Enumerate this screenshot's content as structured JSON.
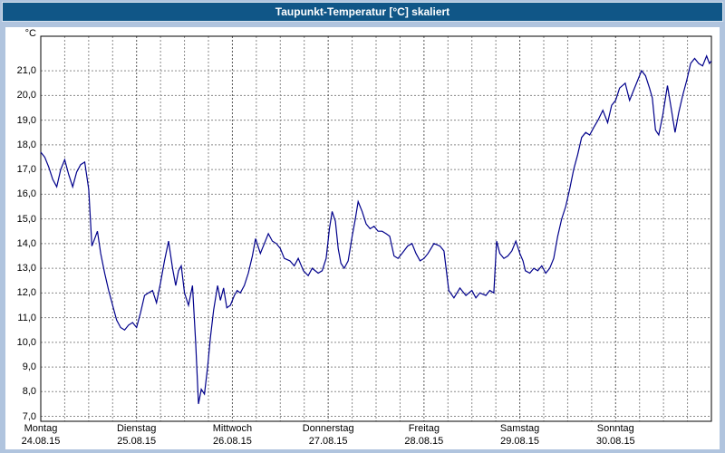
{
  "window": {
    "title": "Taupunkt-Temperatur [°C] skaliert"
  },
  "colors": {
    "frame": "#b0c4de",
    "titlebar": "#105687",
    "plot_background": "#ffffff",
    "grid": "#8a8a8a",
    "day_grid": "#555555",
    "axis_border": "#000000",
    "line": "#00008b"
  },
  "chart_data": {
    "type": "line",
    "title": "Taupunkt-Temperatur [°C] skaliert",
    "ylabel": "°C",
    "ylim": [
      6.8,
      22.4
    ],
    "grid": true,
    "x_axis": {
      "unit": "hours",
      "range": [
        0,
        168
      ],
      "minor_grid_hours": 6,
      "days": [
        {
          "name": "Montag",
          "date": "24.08.15"
        },
        {
          "name": "Dienstag",
          "date": "25.08.15"
        },
        {
          "name": "Mittwoch",
          "date": "26.08.15"
        },
        {
          "name": "Donnerstag",
          "date": "27.08.15"
        },
        {
          "name": "Freitag",
          "date": "28.08.15"
        },
        {
          "name": "Samstag",
          "date": "29.08.15"
        },
        {
          "name": "Sonntag",
          "date": "30.08.15"
        }
      ]
    },
    "y_ticks": [
      {
        "value": 21,
        "label": "21,0"
      },
      {
        "value": 20,
        "label": "20,0"
      },
      {
        "value": 19,
        "label": "19,0"
      },
      {
        "value": 18,
        "label": "18,0"
      },
      {
        "value": 17,
        "label": "17,0"
      },
      {
        "value": 16,
        "label": "16,0"
      },
      {
        "value": 15,
        "label": "15,0"
      },
      {
        "value": 14,
        "label": "14,0"
      },
      {
        "value": 13,
        "label": "13,0"
      },
      {
        "value": 12,
        "label": "12,0"
      },
      {
        "value": 11,
        "label": "11,0"
      },
      {
        "value": 10,
        "label": "10,0"
      },
      {
        "value": 9,
        "label": "9,0"
      },
      {
        "value": 8,
        "label": "8,0"
      },
      {
        "value": 7,
        "label": "7,0"
      }
    ],
    "series": [
      {
        "name": "Taupunkt-Temperatur",
        "color": "#00008b",
        "points": [
          [
            0,
            17.7
          ],
          [
            1,
            17.5
          ],
          [
            2,
            17.1
          ],
          [
            3,
            16.6
          ],
          [
            4,
            16.3
          ],
          [
            5,
            17.0
          ],
          [
            6,
            17.4
          ],
          [
            7,
            16.8
          ],
          [
            8,
            16.3
          ],
          [
            9,
            16.9
          ],
          [
            10,
            17.2
          ],
          [
            11,
            17.3
          ],
          [
            12,
            16.2
          ],
          [
            12.8,
            13.9
          ],
          [
            13.5,
            14.2
          ],
          [
            14.2,
            14.5
          ],
          [
            15,
            13.6
          ],
          [
            16,
            12.8
          ],
          [
            17,
            12.1
          ],
          [
            18,
            11.5
          ],
          [
            19,
            10.9
          ],
          [
            20,
            10.6
          ],
          [
            21,
            10.5
          ],
          [
            22,
            10.7
          ],
          [
            23,
            10.8
          ],
          [
            24,
            10.6
          ],
          [
            25,
            11.2
          ],
          [
            26,
            11.9
          ],
          [
            27,
            12.0
          ],
          [
            28,
            12.1
          ],
          [
            29,
            11.6
          ],
          [
            30,
            12.4
          ],
          [
            31,
            13.3
          ],
          [
            32,
            14.1
          ],
          [
            33,
            13.0
          ],
          [
            33.8,
            12.3
          ],
          [
            34.5,
            12.9
          ],
          [
            35.2,
            13.1
          ],
          [
            36,
            12.0
          ],
          [
            37,
            11.5
          ],
          [
            38,
            12.3
          ],
          [
            38.8,
            10.0
          ],
          [
            39.5,
            7.5
          ],
          [
            40.2,
            8.1
          ],
          [
            41,
            7.9
          ],
          [
            41.8,
            9.0
          ],
          [
            42.5,
            10.2
          ],
          [
            43.3,
            11.3
          ],
          [
            44.3,
            12.3
          ],
          [
            45,
            11.7
          ],
          [
            45.8,
            12.2
          ],
          [
            46.6,
            11.4
          ],
          [
            47.5,
            11.5
          ],
          [
            48.5,
            11.9
          ],
          [
            49.2,
            12.1
          ],
          [
            50,
            12.0
          ],
          [
            51,
            12.3
          ],
          [
            52,
            12.8
          ],
          [
            53,
            13.5
          ],
          [
            53.8,
            14.2
          ],
          [
            55,
            13.6
          ],
          [
            56,
            14.0
          ],
          [
            57,
            14.4
          ],
          [
            58,
            14.1
          ],
          [
            59,
            14.0
          ],
          [
            60,
            13.8
          ],
          [
            61,
            13.4
          ],
          [
            62.4,
            13.3
          ],
          [
            63.5,
            13.1
          ],
          [
            64.5,
            13.4
          ],
          [
            65.8,
            12.9
          ],
          [
            67,
            12.7
          ],
          [
            68,
            13.0
          ],
          [
            69.5,
            12.8
          ],
          [
            70.5,
            12.9
          ],
          [
            71.5,
            13.4
          ],
          [
            72.3,
            14.6
          ],
          [
            73,
            15.3
          ],
          [
            73.8,
            14.9
          ],
          [
            74.5,
            13.8
          ],
          [
            75.2,
            13.2
          ],
          [
            76,
            13.0
          ],
          [
            77,
            13.3
          ],
          [
            78,
            14.3
          ],
          [
            78.8,
            15.0
          ],
          [
            79.5,
            15.7
          ],
          [
            80.5,
            15.3
          ],
          [
            81.5,
            14.8
          ],
          [
            82.5,
            14.6
          ],
          [
            83.5,
            14.7
          ],
          [
            84.5,
            14.5
          ],
          [
            85.5,
            14.5
          ],
          [
            86.5,
            14.4
          ],
          [
            87.4,
            14.3
          ],
          [
            88.5,
            13.5
          ],
          [
            89.5,
            13.4
          ],
          [
            90.5,
            13.6
          ],
          [
            91.9,
            13.9
          ],
          [
            93,
            14.0
          ],
          [
            94,
            13.6
          ],
          [
            95,
            13.3
          ],
          [
            96,
            13.4
          ],
          [
            97,
            13.6
          ],
          [
            98.5,
            14.0
          ],
          [
            100,
            13.9
          ],
          [
            101,
            13.7
          ],
          [
            102.2,
            12.1
          ],
          [
            103.5,
            11.8
          ],
          [
            105,
            12.2
          ],
          [
            106.5,
            11.9
          ],
          [
            108,
            12.1
          ],
          [
            109,
            11.8
          ],
          [
            110,
            12.0
          ],
          [
            111.5,
            11.9
          ],
          [
            112.5,
            12.1
          ],
          [
            113.5,
            12.0
          ],
          [
            114.2,
            14.1
          ],
          [
            115,
            13.6
          ],
          [
            116,
            13.4
          ],
          [
            117,
            13.5
          ],
          [
            118,
            13.7
          ],
          [
            119,
            14.1
          ],
          [
            120,
            13.6
          ],
          [
            120.8,
            13.3
          ],
          [
            121.4,
            12.9
          ],
          [
            122.5,
            12.8
          ],
          [
            123.5,
            13.0
          ],
          [
            124.5,
            12.9
          ],
          [
            125.5,
            13.1
          ],
          [
            126.5,
            12.8
          ],
          [
            127.5,
            13.0
          ],
          [
            128.5,
            13.4
          ],
          [
            129.5,
            14.3
          ],
          [
            130.5,
            15.0
          ],
          [
            131.5,
            15.5
          ],
          [
            132.5,
            16.2
          ],
          [
            133.5,
            17.0
          ],
          [
            134.5,
            17.6
          ],
          [
            135.5,
            18.3
          ],
          [
            136.5,
            18.5
          ],
          [
            137.5,
            18.4
          ],
          [
            138.5,
            18.7
          ],
          [
            139.6,
            19.0
          ],
          [
            140.8,
            19.4
          ],
          [
            142,
            18.9
          ],
          [
            143,
            19.6
          ],
          [
            144,
            19.8
          ],
          [
            145,
            20.3
          ],
          [
            146.4,
            20.5
          ],
          [
            147.5,
            19.8
          ],
          [
            148.5,
            20.2
          ],
          [
            149.5,
            20.6
          ],
          [
            150.5,
            21.0
          ],
          [
            151.5,
            20.8
          ],
          [
            152.5,
            20.3
          ],
          [
            153.2,
            19.9
          ],
          [
            154,
            18.6
          ],
          [
            154.8,
            18.4
          ],
          [
            155.8,
            19.2
          ],
          [
            157,
            20.4
          ],
          [
            157.8,
            19.6
          ],
          [
            158.9,
            18.5
          ],
          [
            159.8,
            19.3
          ],
          [
            160.8,
            20.0
          ],
          [
            161.8,
            20.6
          ],
          [
            162.8,
            21.3
          ],
          [
            163.8,
            21.5
          ],
          [
            164.8,
            21.3
          ],
          [
            165.8,
            21.2
          ],
          [
            166.8,
            21.6
          ],
          [
            167.5,
            21.3
          ],
          [
            168,
            21.4
          ]
        ]
      }
    ]
  }
}
